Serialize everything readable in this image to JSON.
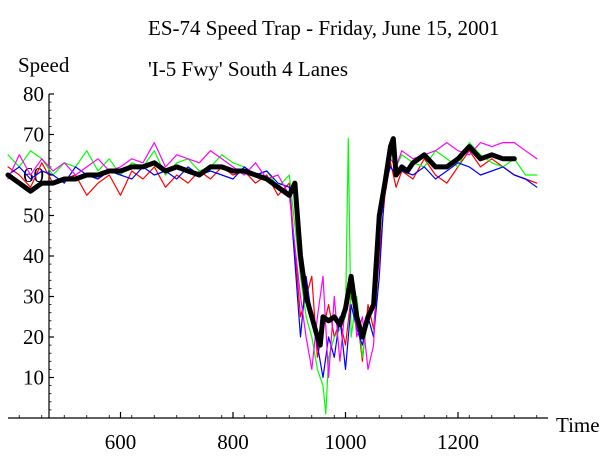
{
  "chart_data": {
    "type": "line",
    "title": "ES-74 Speed Trap - Friday, June 15, 2001",
    "subtitle": "'I-5 Fwy' South  4 Lanes",
    "xlabel": "Time",
    "ylabel": "Speed",
    "xlim": [
      400,
      1360
    ],
    "ylim": [
      0,
      80
    ],
    "x_ticks": [
      600,
      800,
      1000,
      1200
    ],
    "y_ticks": [
      10,
      20,
      30,
      40,
      50,
      60,
      70,
      80
    ],
    "grid": false,
    "series": [
      {
        "color": "#ff0000",
        "width": 1.2,
        "x": [
          400,
          420,
          440,
          460,
          480,
          500,
          520,
          540,
          560,
          580,
          600,
          620,
          640,
          660,
          680,
          700,
          720,
          740,
          760,
          780,
          800,
          820,
          840,
          860,
          880,
          900,
          920,
          930,
          940,
          950,
          960,
          970,
          980,
          990,
          1000,
          1010,
          1020,
          1030,
          1040,
          1050,
          1060,
          1070,
          1080,
          1090,
          1100,
          1120,
          1140,
          1160,
          1180,
          1200,
          1220,
          1240,
          1260,
          1280,
          1300,
          1320,
          1340
        ],
        "y": [
          62,
          60,
          57,
          63,
          58,
          59,
          60,
          55,
          58,
          60,
          55,
          61,
          59,
          62,
          57,
          60,
          58,
          61,
          59,
          62,
          60,
          61,
          58,
          60,
          55,
          58,
          25,
          30,
          35,
          15,
          22,
          28,
          20,
          24,
          18,
          30,
          26,
          14,
          28,
          22,
          40,
          55,
          63,
          57,
          61,
          59,
          64,
          60,
          58,
          62,
          66,
          62,
          64,
          62,
          60,
          59,
          58
        ]
      },
      {
        "color": "#00ff00",
        "width": 1.2,
        "x": [
          400,
          420,
          440,
          460,
          480,
          500,
          520,
          540,
          560,
          580,
          600,
          620,
          640,
          660,
          680,
          700,
          720,
          740,
          760,
          780,
          800,
          820,
          840,
          860,
          880,
          900,
          920,
          930,
          940,
          950,
          960,
          965,
          970,
          980,
          990,
          1000,
          1005,
          1010,
          1020,
          1030,
          1040,
          1050,
          1060,
          1070,
          1080,
          1090,
          1100,
          1120,
          1140,
          1160,
          1180,
          1200,
          1220,
          1240,
          1260,
          1280,
          1300,
          1320,
          1340
        ],
        "y": [
          65,
          62,
          66,
          64,
          60,
          63,
          62,
          66,
          61,
          64,
          60,
          63,
          62,
          66,
          60,
          63,
          64,
          61,
          62,
          65,
          63,
          62,
          60,
          61,
          57,
          60,
          35,
          25,
          20,
          12,
          8,
          1,
          15,
          20,
          22,
          25,
          69,
          20,
          30,
          15,
          25,
          20,
          45,
          60,
          66,
          62,
          65,
          63,
          62,
          66,
          64,
          62,
          68,
          65,
          63,
          62,
          64,
          60,
          60
        ]
      },
      {
        "color": "#0000ff",
        "width": 1.2,
        "x": [
          400,
          420,
          440,
          460,
          480,
          500,
          520,
          540,
          560,
          580,
          600,
          620,
          640,
          660,
          680,
          700,
          720,
          740,
          760,
          780,
          800,
          820,
          840,
          860,
          880,
          900,
          920,
          930,
          940,
          950,
          960,
          970,
          980,
          990,
          1000,
          1010,
          1020,
          1030,
          1040,
          1050,
          1060,
          1070,
          1080,
          1090,
          1100,
          1120,
          1140,
          1160,
          1180,
          1200,
          1220,
          1240,
          1260,
          1280,
          1300,
          1320,
          1340
        ],
        "y": [
          60,
          62,
          59,
          61,
          60,
          58,
          62,
          60,
          59,
          61,
          60,
          59,
          62,
          60,
          61,
          59,
          62,
          60,
          61,
          60,
          59,
          62,
          60,
          61,
          58,
          57,
          20,
          35,
          25,
          18,
          10,
          20,
          15,
          25,
          12,
          28,
          22,
          18,
          25,
          20,
          35,
          58,
          62,
          60,
          61,
          60,
          62,
          59,
          61,
          63,
          62,
          60,
          61,
          62,
          60,
          59,
          57
        ]
      },
      {
        "color": "#ff00ff",
        "width": 1.2,
        "x": [
          400,
          420,
          440,
          460,
          480,
          500,
          520,
          540,
          560,
          580,
          600,
          620,
          640,
          660,
          680,
          700,
          720,
          740,
          760,
          780,
          800,
          820,
          840,
          860,
          880,
          900,
          920,
          930,
          940,
          950,
          960,
          970,
          980,
          990,
          1000,
          1010,
          1020,
          1030,
          1040,
          1050,
          1060,
          1070,
          1080,
          1090,
          1100,
          1120,
          1140,
          1160,
          1180,
          1200,
          1220,
          1240,
          1260,
          1280,
          1300,
          1320,
          1340
        ],
        "y": [
          59,
          65,
          60,
          64,
          61,
          63,
          60,
          62,
          64,
          61,
          62,
          64,
          63,
          68,
          62,
          65,
          64,
          63,
          66,
          64,
          62,
          60,
          63,
          59,
          60,
          55,
          30,
          20,
          12,
          25,
          35,
          10,
          30,
          14,
          28,
          35,
          20,
          25,
          12,
          18,
          50,
          60,
          64,
          62,
          66,
          64,
          65,
          66,
          68,
          66,
          65,
          68,
          67,
          68,
          68,
          66,
          64
        ]
      },
      {
        "color": "#000000",
        "width": 5,
        "x": [
          400,
          420,
          440,
          460,
          480,
          500,
          520,
          540,
          560,
          580,
          600,
          620,
          640,
          660,
          680,
          700,
          720,
          740,
          760,
          780,
          800,
          820,
          840,
          860,
          880,
          900,
          910,
          920,
          930,
          940,
          950,
          955,
          960,
          970,
          980,
          990,
          1000,
          1010,
          1020,
          1030,
          1040,
          1050,
          1060,
          1070,
          1080,
          1085,
          1090,
          1100,
          1110,
          1120,
          1140,
          1160,
          1180,
          1200,
          1220,
          1240,
          1260,
          1280,
          1300
        ],
        "y": [
          60,
          58,
          56,
          58,
          58,
          59,
          59,
          60,
          60,
          61,
          61,
          62,
          62,
          63,
          61,
          62,
          61,
          60,
          62,
          62,
          61,
          61,
          60,
          59,
          57,
          55,
          58,
          40,
          30,
          25,
          20,
          18,
          25,
          24,
          25,
          23,
          27,
          35,
          25,
          20,
          25,
          28,
          50,
          58,
          67,
          69,
          60,
          62,
          61,
          63,
          65,
          62,
          62,
          64,
          67,
          64,
          65,
          64,
          64
        ]
      }
    ]
  }
}
